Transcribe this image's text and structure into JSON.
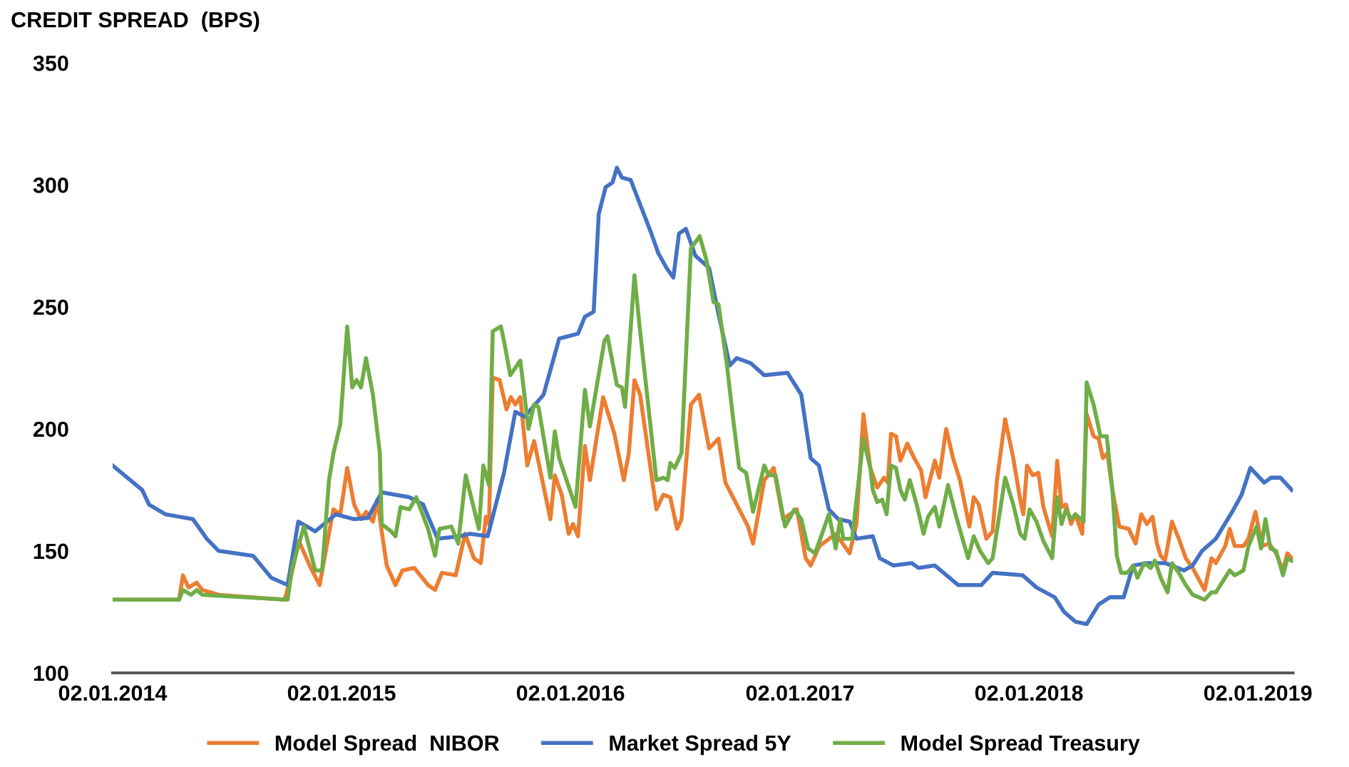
{
  "chart_data": {
    "type": "line",
    "ylabel": "CREDIT SPREAD  (BPS)",
    "xlim": [
      "2014-01-02",
      "2019-02-27"
    ],
    "xticks": [
      {
        "value": "2014-01-02",
        "label": "02.01.2014"
      },
      {
        "value": "2015-01-02",
        "label": "02.01.2015"
      },
      {
        "value": "2016-01-02",
        "label": "02.01.2016"
      },
      {
        "value": "2017-01-02",
        "label": "02.01.2017"
      },
      {
        "value": "2018-01-02",
        "label": "02.01.2018"
      },
      {
        "value": "2019-01-02",
        "label": "02.01.2019"
      }
    ],
    "ylim": [
      100,
      350
    ],
    "yticks": [
      100,
      150,
      200,
      250,
      300,
      350
    ],
    "grid": false,
    "legend": "bottom",
    "marker": "none",
    "line_style": "solid",
    "series": [
      {
        "name": "Model Spread  NIBOR",
        "color": "#ed7d31",
        "x": [
          "2014-01-02",
          "2014-04-18",
          "2014-04-24",
          "2014-05-03",
          "2014-05-16",
          "2014-05-25",
          "2014-06-20",
          "2014-10-03",
          "2014-10-12",
          "2014-10-26",
          "2014-11-14",
          "2014-11-28",
          "2014-12-20",
          "2014-12-31",
          "2015-01-11",
          "2015-01-22",
          "2015-02-02",
          "2015-02-10",
          "2015-02-21",
          "2015-02-28",
          "2015-03-07",
          "2015-03-15",
          "2015-03-29",
          "2015-04-09",
          "2015-04-28",
          "2015-05-20",
          "2015-05-31",
          "2015-06-11",
          "2015-07-03",
          "2015-07-18",
          "2015-08-01",
          "2015-08-12",
          "2015-08-20",
          "2015-08-25",
          "2015-08-31",
          "2015-09-11",
          "2015-09-22",
          "2015-09-29",
          "2015-10-06",
          "2015-10-14",
          "2015-10-25",
          "2015-11-05",
          "2015-12-01",
          "2015-12-08",
          "2015-12-19",
          "2015-12-30",
          "2016-01-06",
          "2016-01-14",
          "2016-01-25",
          "2016-02-02",
          "2016-02-23",
          "2016-03-12",
          "2016-03-27",
          "2016-04-04",
          "2016-04-13",
          "2016-04-22",
          "2016-05-18",
          "2016-05-29",
          "2016-06-09",
          "2016-06-20",
          "2016-06-27",
          "2016-07-12",
          "2016-07-25",
          "2016-08-10",
          "2016-08-25",
          "2016-09-05",
          "2016-09-23",
          "2016-10-11",
          "2016-10-19",
          "2016-11-06",
          "2016-11-21",
          "2016-12-06",
          "2016-12-28",
          "2017-01-11",
          "2017-01-19",
          "2017-02-02",
          "2017-02-28",
          "2017-03-22",
          "2017-04-02",
          "2017-04-13",
          "2017-04-24",
          "2017-05-05",
          "2017-05-16",
          "2017-05-22",
          "2017-05-27",
          "2017-06-04",
          "2017-06-11",
          "2017-06-22",
          "2017-07-03",
          "2017-07-14",
          "2017-07-21",
          "2017-08-05",
          "2017-08-12",
          "2017-08-23",
          "2017-09-03",
          "2017-09-14",
          "2017-09-29",
          "2017-10-06",
          "2017-10-14",
          "2017-10-26",
          "2017-11-05",
          "2017-11-12",
          "2017-11-25",
          "2017-12-08",
          "2017-12-19",
          "2017-12-24",
          "2017-12-30",
          "2018-01-08",
          "2018-01-17",
          "2018-01-25",
          "2018-02-08",
          "2018-02-16",
          "2018-02-23",
          "2018-03-02",
          "2018-03-10",
          "2018-03-17",
          "2018-03-28",
          "2018-04-04",
          "2018-04-15",
          "2018-04-23",
          "2018-04-30",
          "2018-05-07",
          "2018-05-15",
          "2018-05-26",
          "2018-06-10",
          "2018-06-21",
          "2018-06-30",
          "2018-07-09",
          "2018-07-18",
          "2018-07-25",
          "2018-07-31",
          "2018-08-07",
          "2018-08-18",
          "2018-08-29",
          "2018-09-09",
          "2018-09-20",
          "2018-10-09",
          "2018-10-20",
          "2018-10-27",
          "2018-11-11",
          "2018-11-18",
          "2018-11-26",
          "2018-12-10",
          "2018-12-18",
          "2018-12-29",
          "2019-01-09",
          "2019-01-20",
          "2019-01-31",
          "2019-02-11",
          "2019-02-18",
          "2019-02-25"
        ],
        "values": [
          130,
          130,
          140,
          135,
          137,
          134,
          132,
          130,
          138,
          154,
          143,
          136,
          167,
          165,
          184,
          169,
          163,
          166,
          162,
          171,
          158,
          144,
          136,
          142,
          143,
          136,
          134,
          141,
          140,
          157,
          147,
          145,
          164,
          161,
          221,
          220,
          208,
          213,
          210,
          213,
          185,
          195,
          163,
          181,
          173,
          157,
          161,
          156,
          193,
          179,
          213,
          198,
          179,
          190,
          220,
          214,
          167,
          173,
          172,
          159,
          163,
          210,
          214,
          192,
          196,
          178,
          169,
          160,
          153,
          179,
          184,
          163,
          167,
          147,
          144,
          152,
          157,
          149,
          161,
          206,
          184,
          176,
          180,
          178,
          198,
          197,
          187,
          194,
          188,
          183,
          172,
          187,
          180,
          200,
          188,
          179,
          160,
          172,
          169,
          155,
          158,
          179,
          204,
          188,
          171,
          165,
          185,
          181,
          182,
          168,
          156,
          187,
          168,
          169,
          161,
          165,
          157,
          206,
          197,
          196,
          188,
          190,
          175,
          160,
          159,
          153,
          165,
          161,
          164,
          153,
          148,
          146,
          162,
          155,
          147,
          143,
          134,
          147,
          145,
          152,
          159,
          152,
          152,
          155,
          166,
          152,
          153,
          149,
          142,
          149,
          147
        ]
      },
      {
        "name": "Market Spread 5Y",
        "color": "#4472c4",
        "x": [
          "2014-01-02",
          "2014-02-18",
          "2014-03-01",
          "2014-03-27",
          "2014-05-10",
          "2014-06-01",
          "2014-06-20",
          "2014-08-14",
          "2014-09-12",
          "2014-10-08",
          "2014-10-25",
          "2014-11-21",
          "2014-12-24",
          "2015-01-22",
          "2015-02-13",
          "2015-03-07",
          "2015-04-20",
          "2015-05-12",
          "2015-06-04",
          "2015-07-10",
          "2015-07-25",
          "2015-08-23",
          "2015-09-18",
          "2015-10-06",
          "2015-10-21",
          "2015-11-20",
          "2015-12-15",
          "2016-01-14",
          "2016-01-25",
          "2016-02-08",
          "2016-02-16",
          "2016-02-27",
          "2016-03-09",
          "2016-03-16",
          "2016-03-24",
          "2016-04-07",
          "2016-04-22",
          "2016-05-10",
          "2016-05-21",
          "2016-06-03",
          "2016-06-14",
          "2016-06-23",
          "2016-07-04",
          "2016-07-19",
          "2016-08-10",
          "2016-08-25",
          "2016-09-12",
          "2016-09-23",
          "2016-10-15",
          "2016-11-06",
          "2016-12-13",
          "2017-01-04",
          "2017-01-19",
          "2017-02-01",
          "2017-02-17",
          "2017-03-04",
          "2017-03-22",
          "2017-04-02",
          "2017-04-28",
          "2017-05-09",
          "2017-05-31",
          "2017-06-29",
          "2017-07-10",
          "2017-08-05",
          "2017-09-11",
          "2017-10-18",
          "2017-11-05",
          "2017-12-23",
          "2018-01-14",
          "2018-02-12",
          "2018-02-27",
          "2018-03-17",
          "2018-04-04",
          "2018-04-23",
          "2018-05-11",
          "2018-06-02",
          "2018-06-17",
          "2018-07-09",
          "2018-08-07",
          "2018-09-06",
          "2018-09-20",
          "2018-10-05",
          "2018-10-27",
          "2018-11-22",
          "2018-12-07",
          "2018-12-21",
          "2019-01-12",
          "2019-01-23",
          "2019-02-07",
          "2019-02-25"
        ],
        "values": [
          185,
          175,
          169,
          165,
          163,
          155,
          150,
          148,
          139,
          136,
          162,
          158,
          165,
          163,
          163.5,
          174,
          172,
          169,
          155,
          156,
          157,
          156,
          182,
          207,
          205,
          214,
          237,
          239,
          246,
          248,
          288,
          299,
          301,
          307,
          303,
          302,
          292,
          280,
          272,
          266,
          262,
          280,
          282,
          271,
          266,
          247,
          226,
          229,
          227,
          222,
          223,
          214,
          188,
          185,
          167,
          163,
          162,
          155,
          156,
          147,
          144,
          145,
          143,
          144,
          136,
          136,
          141,
          140,
          135,
          131,
          125,
          121,
          120,
          128,
          131,
          131,
          144,
          145,
          145,
          142,
          144,
          150,
          155,
          166,
          173,
          184,
          178,
          180,
          180,
          175
        ]
      },
      {
        "name": "Model Spread Treasury",
        "color": "#70ad47",
        "x": [
          "2014-01-02",
          "2014-04-18",
          "2014-04-24",
          "2014-05-07",
          "2014-05-16",
          "2014-05-25",
          "2014-10-08",
          "2014-10-15",
          "2014-11-03",
          "2014-11-21",
          "2014-12-02",
          "2014-12-13",
          "2014-12-20",
          "2014-12-31",
          "2015-01-11",
          "2015-01-19",
          "2015-01-26",
          "2015-02-02",
          "2015-02-10",
          "2015-02-21",
          "2015-03-04",
          "2015-03-07",
          "2015-03-22",
          "2015-03-29",
          "2015-04-06",
          "2015-04-20",
          "2015-05-01",
          "2015-05-20",
          "2015-05-31",
          "2015-06-07",
          "2015-06-26",
          "2015-07-07",
          "2015-07-19",
          "2015-08-09",
          "2015-08-16",
          "2015-08-25",
          "2015-08-31",
          "2015-09-13",
          "2015-09-18",
          "2015-09-28",
          "2015-10-14",
          "2015-10-27",
          "2015-11-05",
          "2015-11-12",
          "2015-12-01",
          "2015-12-08",
          "2015-12-15",
          "2016-01-10",
          "2016-01-25",
          "2016-02-02",
          "2016-02-25",
          "2016-03-01",
          "2016-03-16",
          "2016-03-24",
          "2016-03-29",
          "2016-04-13",
          "2016-04-22",
          "2016-05-18",
          "2016-05-29",
          "2016-06-05",
          "2016-06-09",
          "2016-06-16",
          "2016-06-27",
          "2016-07-12",
          "2016-07-26",
          "2016-08-06",
          "2016-08-17",
          "2016-08-25",
          "2016-09-07",
          "2016-09-16",
          "2016-09-27",
          "2016-10-08",
          "2016-10-19",
          "2016-11-06",
          "2016-11-13",
          "2016-11-24",
          "2016-12-09",
          "2016-12-24",
          "2017-01-04",
          "2017-01-15",
          "2017-01-26",
          "2017-02-17",
          "2017-02-28",
          "2017-03-07",
          "2017-03-12",
          "2017-03-26",
          "2017-04-13",
          "2017-04-24",
          "2017-04-28",
          "2017-05-05",
          "2017-05-13",
          "2017-05-20",
          "2017-05-27",
          "2017-06-04",
          "2017-06-11",
          "2017-06-18",
          "2017-06-26",
          "2017-07-07",
          "2017-07-18",
          "2017-07-25",
          "2017-08-05",
          "2017-08-12",
          "2017-08-26",
          "2017-09-07",
          "2017-09-18",
          "2017-09-27",
          "2017-10-06",
          "2017-10-16",
          "2017-10-29",
          "2017-11-05",
          "2017-11-16",
          "2017-11-25",
          "2017-12-08",
          "2017-12-19",
          "2017-12-26",
          "2018-01-03",
          "2018-01-14",
          "2018-01-25",
          "2018-02-08",
          "2018-02-16",
          "2018-02-23",
          "2018-03-02",
          "2018-03-10",
          "2018-03-17",
          "2018-03-30",
          "2018-04-04",
          "2018-04-15",
          "2018-04-26",
          "2018-05-06",
          "2018-05-15",
          "2018-05-22",
          "2018-05-29",
          "2018-06-08",
          "2018-06-17",
          "2018-06-24",
          "2018-07-05",
          "2018-07-15",
          "2018-07-22",
          "2018-07-31",
          "2018-08-11",
          "2018-08-18",
          "2018-08-29",
          "2018-09-09",
          "2018-09-20",
          "2018-10-09",
          "2018-10-20",
          "2018-10-27",
          "2018-11-18",
          "2018-11-26",
          "2018-12-10",
          "2018-12-18",
          "2018-12-31",
          "2019-01-07",
          "2019-01-14",
          "2019-01-22",
          "2019-01-31",
          "2019-02-11",
          "2019-02-18",
          "2019-02-25"
        ],
        "values": [
          130,
          130,
          134,
          132,
          134,
          132,
          130,
          143,
          160,
          142,
          142,
          179,
          190,
          202,
          242,
          217,
          220,
          217,
          229,
          214,
          190,
          161,
          158,
          156,
          168,
          167,
          172,
          159,
          148,
          159,
          160,
          153,
          181,
          159,
          185,
          177,
          240,
          242,
          236,
          222,
          228,
          200,
          210,
          209,
          180,
          199,
          188,
          168,
          216,
          201,
          236,
          238,
          218,
          217,
          209,
          263,
          240,
          179,
          180,
          179,
          186,
          184,
          190,
          274,
          279,
          269,
          252,
          251,
          227,
          207,
          184,
          182,
          166,
          185,
          181,
          181,
          160,
          167,
          163,
          151,
          149,
          165,
          151,
          163,
          155,
          155,
          196,
          184,
          175,
          170,
          171,
          165,
          185,
          184,
          175,
          171,
          179,
          169,
          157,
          164,
          168,
          160,
          177,
          165,
          155,
          147,
          156,
          150,
          145,
          147,
          165,
          180,
          169,
          157,
          155,
          167,
          162,
          154,
          147,
          172,
          161,
          167,
          163,
          165,
          162,
          219,
          210,
          197,
          197,
          175,
          148,
          141,
          141,
          144,
          139,
          145,
          143,
          146,
          139,
          133,
          145,
          141,
          136,
          132,
          130,
          133,
          133,
          142,
          140,
          142,
          152,
          160,
          151,
          163,
          151,
          150,
          140,
          147,
          146
        ]
      }
    ]
  }
}
